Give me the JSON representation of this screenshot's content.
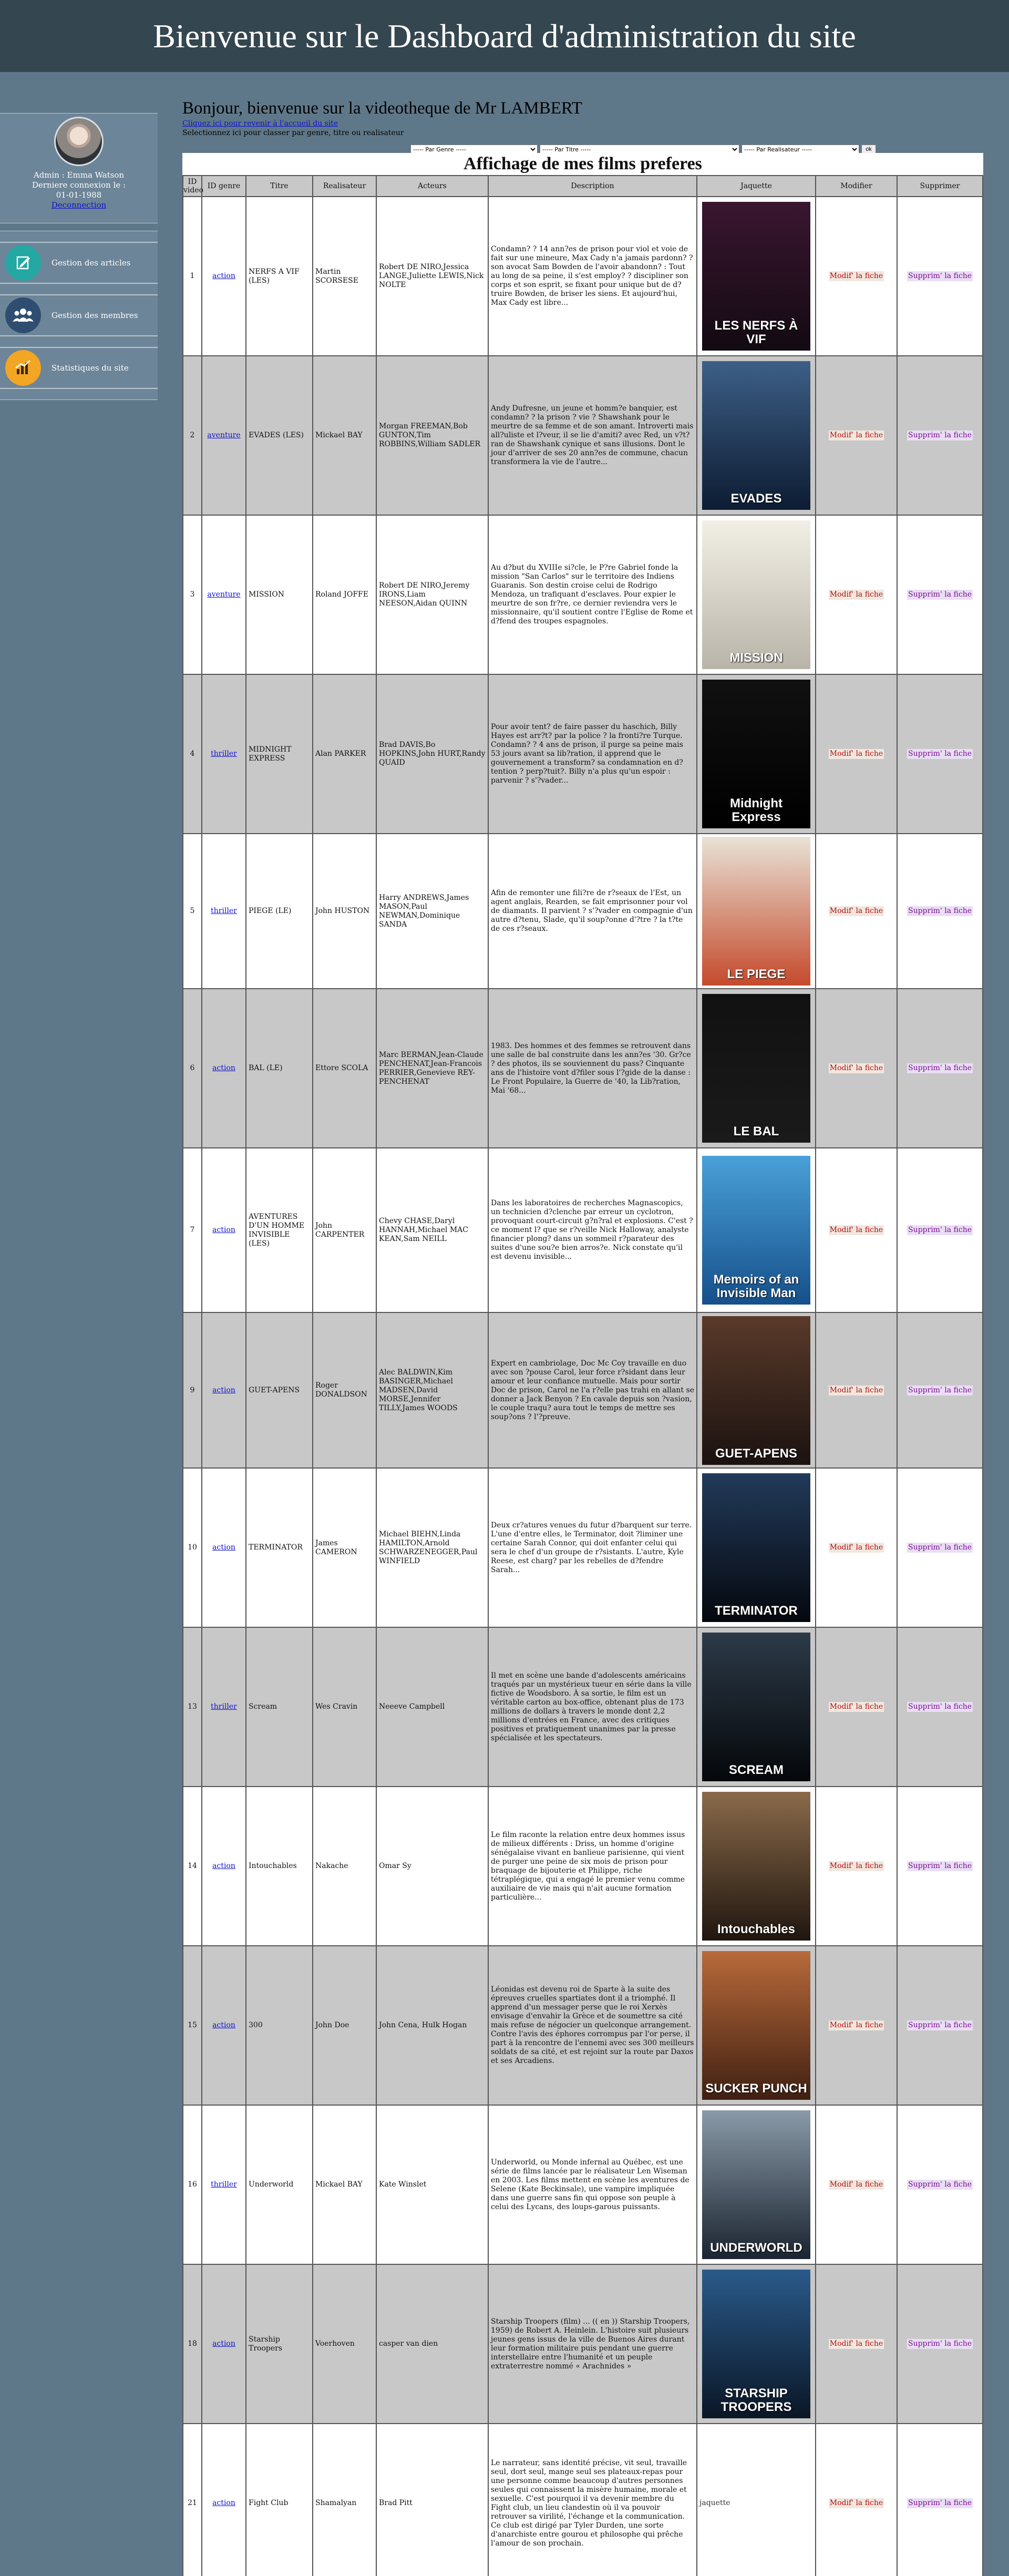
{
  "header": {
    "title": "Bienvenue sur le Dashboard d'administration du site"
  },
  "sidebar": {
    "profile": {
      "line1": "Admin : Emma Watson",
      "line2": "Derniere connexion le :",
      "line3": "01-01-1988",
      "logout": "Deconnection"
    },
    "items": [
      {
        "label": "Gestion des articles",
        "icon": "article-edit-icon",
        "color": "#23a8a3"
      },
      {
        "label": "Gestion des membres",
        "icon": "members-group-icon",
        "color": "#2f4d70"
      },
      {
        "label": "Statistiques du site",
        "icon": "stats-chart-icon",
        "color": "#f3a524"
      }
    ]
  },
  "main": {
    "greeting": "Bonjour, bienvenue sur la videotheque de Mr LAMBERT",
    "change_link": "Cliquez ici pour revenir à l'accueil du site",
    "hint": "Selectionnez ici pour classer par genre, titre ou realisateur",
    "filters": {
      "genre": "----- Par Genre -----",
      "titre": "----- Par Titre -----",
      "realisateur": "----- Par Realisateur -----",
      "ok": "ok"
    },
    "table_caption": "Affichage de mes films preferes",
    "columns": [
      "ID video",
      "ID genre",
      "Titre",
      "Realisateur",
      "Acteurs",
      "Description",
      "Jaquette",
      "Modifier",
      "Supprimer"
    ],
    "modify_label": "Modif' la fiche",
    "delete_label": "Supprim' la fiche",
    "broken_img_alt": "jaquette",
    "rows": [
      {
        "id": "1",
        "genre": "action",
        "titre": "NERFS A VIF (LES)",
        "realisateur": "Martin SCORSESE",
        "acteurs": "Robert DE NIRO,Jessica LANGE,Juliette LEWIS,Nick NOLTE",
        "description": "Condamn? ? 14 ann?es de prison pour viol et voie de fait sur une mineure, Max Cady n'a jamais pardonn? ? son avocat Sam Bowden de l'avoir abandonn? : Tout au long de sa peine, il s'est employ? ? discipliner son corps et son esprit, se fixant pour unique but de d?truire Bowden, de briser les siens. Et aujourd'hui, Max Cady est libre...",
        "poster_text": "LES NERFS À VIF",
        "poster_colors": [
          "#3a1630",
          "#120a12"
        ]
      },
      {
        "id": "2",
        "genre": "aventure",
        "titre": "EVADES (LES)",
        "realisateur": "Mickael BAY",
        "acteurs": "Morgan FREEMAN,Bob GUNTON,Tim ROBBINS,William SADLER",
        "description": "Andy Dufresne, un jeune et homm?e banquier, est condamn? ? la prison ? vie ? Shawshank pour le meurtre de sa femme et de son amant. Introverti mais all?uliste et l?veur, il se lie d'amiti? avec Red, un v?t?ran de Shawshank cynique et sans illusions. Dont le jour d'arriver de ses 20 ann?es de commune, chacun transformera la vie de l'autre...",
        "poster_text": "EVADES",
        "poster_colors": [
          "#3d5f86",
          "#0d1c33"
        ]
      },
      {
        "id": "3",
        "genre": "aventure",
        "titre": "MISSION",
        "realisateur": "Roland JOFFE",
        "acteurs": "Robert DE NIRO,Jeremy IRONS,Liam NEESON,Aidan QUINN",
        "description": "Au d?but du XVIIIe si?cle, le P?re Gabriel fonde la mission \"San Carlos\" sur le territoire des Indiens Guaranis. Son destin croise celui de Rodrigo Mendoza, un trafiquant d'esclaves. Pour expier le meurtre de son fr?re, ce dernier reviendra vers le missionnaire, qu'il soutient contre l'Eglise de Rome et d?fend des troupes espagnoles.",
        "poster_text": "MISSION",
        "poster_colors": [
          "#f2efe6",
          "#b8b4a8"
        ]
      },
      {
        "id": "4",
        "genre": "thriller",
        "titre": "MIDNIGHT EXPRESS",
        "realisateur": "Alan PARKER",
        "acteurs": "Brad DAVIS,Bo HOPKINS,John HURT,Randy QUAID",
        "description": "Pour avoir tent? de faire passer du haschich, Billy Hayes est arr?t? par la police ? la fronti?re Turque. Condamn? ? 4 ans de prison, il purge sa peine mais 53 jours avant sa lib?ration, il apprend que le gouvernement a transform? sa condamnation en d?tention ? perp?tuit?. Billy n'a plus qu'un espoir : parvenir ? s'?vader...",
        "poster_text": "Midnight Express",
        "poster_colors": [
          "#111111",
          "#000000"
        ]
      },
      {
        "id": "5",
        "genre": "thriller",
        "titre": "PIEGE (LE)",
        "realisateur": "John HUSTON",
        "acteurs": "Harry ANDREWS,James MASON,Paul NEWMAN,Dominique SANDA",
        "description": "Afin de remonter une fili?re de r?seaux de l'Est, un agent anglais, Rearden, se fait emprisonner pour vol de diamants. Il parvient ? s'?vader en compagnie d'un autre d?tenu, Slade, qu'il soup?onne d'?tre ? la t?te de ces r?seaux.",
        "poster_text": "LE PIEGE",
        "poster_colors": [
          "#e8e2d6",
          "#c54a2c"
        ]
      },
      {
        "id": "6",
        "genre": "action",
        "titre": "BAL (LE)",
        "realisateur": "Ettore SCOLA",
        "acteurs": "Marc BERMAN,Jean-Claude PENCHENAT,Jean-Francois PERRIER,Genevieve REY-PENCHENAT",
        "description": "1983. Des hommes et des femmes se retrouvent dans une salle de bal construite dans les ann?es '30. Gr?ce ? des photos, ils se souviennent du pass? Cinquante ans de l'histoire vont d?filer sous l'?gide de la danse : Le Front Populaire, la Guerre de '40, la Lib?ration, Mai '68...",
        "poster_text": "LE BAL",
        "poster_colors": [
          "#111111",
          "#1a1a1a"
        ]
      },
      {
        "id": "7",
        "genre": "action",
        "titre": "AVENTURES D'UN HOMME INVISIBLE (LES)",
        "realisateur": "John CARPENTER",
        "acteurs": "Chevy CHASE,Daryl HANNAH,Michael MAC KEAN,Sam NEILL",
        "description": "Dans les laboratoires de recherches Magnascopics, un technicien d?clenche par erreur un cyclotron, provoquant court-circuit g?n?ral et explosions. C'est ? ce moment l? que se r?veille Nick Halloway, analyste financier plong? dans un sommeil r?parateur des suites d'une sou?e bien arros?e. Nick constate qu'il est devenu invisible...",
        "poster_text": "Memoirs of an Invisible Man",
        "poster_colors": [
          "#4aa0d8",
          "#16508a"
        ]
      },
      {
        "id": "9",
        "genre": "action",
        "titre": "GUET-APENS",
        "realisateur": "Roger DONALDSON",
        "acteurs": "Alec BALDWIN,Kim BASINGER,Michael MADSEN,David MORSE,Jennifer TILLY,James WOODS",
        "description": "Expert en cambriolage, Doc Mc Coy travaille en duo avec son ?pouse Carol, leur force r?sidant dans leur amour et leur confiance mutuelle. Mais pour sortir Doc de prison, Carol ne l'a r?elle pas trahi en allant se donner a Jack Benyon ? En cavale depuis son ?vasion, le couple traqu? aura tout le temps de mettre ses soup?ons ? l'?preuve.",
        "poster_text": "GUET-APENS",
        "poster_colors": [
          "#5a3a2a",
          "#1b1210"
        ]
      },
      {
        "id": "10",
        "genre": "action",
        "titre": "TERMINATOR",
        "realisateur": "James CAMERON",
        "acteurs": "Michael BIEHN,Linda HAMILTON,Arnold SCHWARZENEGGER,Paul WINFIELD",
        "description": "Deux cr?atures venues du futur d?barquent sur terre. L'une d'entre elles, le Terminator, doit ?liminer une certaine Sarah Connor, qui doit enfanter celui qui sera le chef d'un groupe de r?sistants. L'autre, Kyle Reese, est charg? par les rebelles de d?fendre Sarah...",
        "poster_text": "TERMINATOR",
        "poster_colors": [
          "#223a5a",
          "#05080e"
        ]
      },
      {
        "id": "13",
        "genre": "thriller",
        "titre": "Scream",
        "realisateur": "Wes Cravin",
        "acteurs": "Neeeve Campbell",
        "description": "Il met en scène une bande d'adolescents américains traqués par un mystérieux tueur en série dans la ville fictive de Woodsboro. À sa sortie, le film est un véritable carton au box-office, obtenant plus de 173 millions de dollars à travers le monde dont 2,2 millions d'entrées en France, avec des critiques positives et pratiquement unanimes par la presse spécialisée et les spectateurs.",
        "poster_text": "SCREAM",
        "poster_colors": [
          "#2c3a48",
          "#05070a"
        ]
      },
      {
        "id": "14",
        "genre": "action",
        "titre": "Intouchables",
        "realisateur": "Nakache",
        "acteurs": "Omar Sy",
        "description": "Le film raconte la relation entre deux hommes issus de milieux différents : Driss, un homme d'origine sénégalaise vivant en banlieue parisienne, qui vient de purger une peine de six mois de prison pour braquage de bijouterie et Philippe, riche tétraplégique, qui a engagé le premier venu comme auxiliaire de vie mais qui n'ait aucune formation particulière...",
        "poster_text": "Intouchables",
        "poster_colors": [
          "#8a6a4a",
          "#20160f"
        ]
      },
      {
        "id": "15",
        "genre": "action",
        "titre": "300",
        "realisateur": "John Doe",
        "acteurs": "John Cena, Hulk Hogan",
        "description": "Léonidas est devenu roi de Sparte à la suite des épreuves cruelles spartiates dont il a triomphé. Il apprend d'un messager perse que le roi Xerxès envisage d'envahir la Grèce et de soumettre sa cité mais refuse de négocier un quelconque arrangement. Contre l'avis des éphores corrompus par l'or perse, il part à la rencontre de l'ennemi avec ses 300 meilleurs soldats de sa cité, et est rejoint sur la route par Daxos et ses Arcadiens.",
        "poster_text": "SUCKER PUNCH",
        "poster_colors": [
          "#b86a3a",
          "#402012"
        ]
      },
      {
        "id": "16",
        "genre": "thriller",
        "titre": "Underworld",
        "realisateur": "Mickael BAY",
        "acteurs": "Kate Winslet",
        "description": "Underworld, ou Monde infernal au Québec, est une série de films lancée par le réalisateur Len Wiseman en 2003. Les films mettent en scène les aventures de Selene (Kate Beckinsale), une vampire impliquée dans une guerre sans fin qui oppose son peuple à celui des Lycans, des loups-garous puissants.",
        "poster_text": "UNDERWORLD",
        "poster_colors": [
          "#8a9aa8",
          "#1b2430"
        ]
      },
      {
        "id": "18",
        "genre": "action",
        "titre": "Starship Troopers",
        "realisateur": "Voerhoven",
        "acteurs": "casper van dien",
        "description": "Starship Troopers (film) ... (( en )) Starship Troopers, 1959) de Robert A. Heinlein. L'histoire suit plusieurs jeunes gens issus de la ville de Buenos Aires durant leur formation militaire puis pendant une guerre interstellaire entre l'humanité et un peuple extraterrestre nommé « Arachnides »",
        "poster_text": "STARSHIP TROOPERS",
        "poster_colors": [
          "#2a5a8a",
          "#0a1626"
        ]
      },
      {
        "id": "21",
        "genre": "action",
        "titre": "Fight Club",
        "realisateur": "Shamalyan",
        "acteurs": "Brad Pitt",
        "description": "Le narrateur, sans identité précise, vit seul, travaille seul, dort seul, mange seul ses plateaux-repas pour une personne comme beaucoup d'autres personnes seules qui connaissent la misère humaine, morale et sexuelle. C'est pourquoi il va devenir membre du Fight club, un lieu clandestin où il va pouvoir retrouver sa virilité, l'échange et la communication. Ce club est dirigé par Tyler Durden, une sorte d'anarchiste entre gourou et philosophe qui prêche l'amour de son prochain.",
        "poster_text": "",
        "poster_colors": []
      }
    ]
  }
}
